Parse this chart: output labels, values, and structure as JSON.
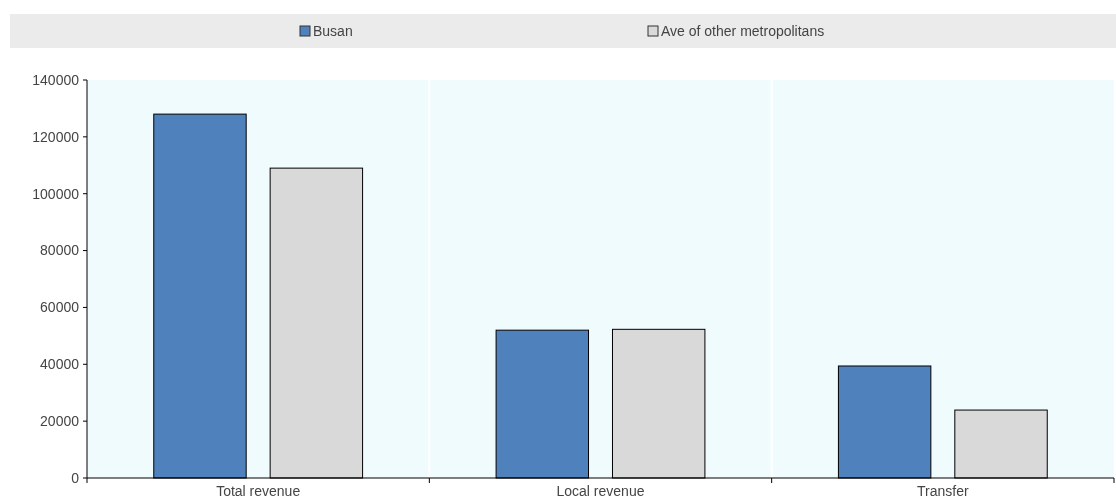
{
  "chart_data": {
    "type": "bar",
    "categories": [
      "Total revenue",
      "Local revenue",
      "Transfer"
    ],
    "series": [
      {
        "name": "Busan",
        "color": "#4f81bd",
        "values": [
          128000,
          52000,
          39400
        ]
      },
      {
        "name": "Ave of other metropolitans",
        "color": "#d9d9d9",
        "values": [
          109000,
          52300,
          23900
        ]
      }
    ],
    "ylim": [
      0,
      140000
    ],
    "yticks": [
      0,
      20000,
      40000,
      60000,
      80000,
      100000,
      120000,
      140000
    ],
    "grid": false,
    "legend": "top"
  }
}
